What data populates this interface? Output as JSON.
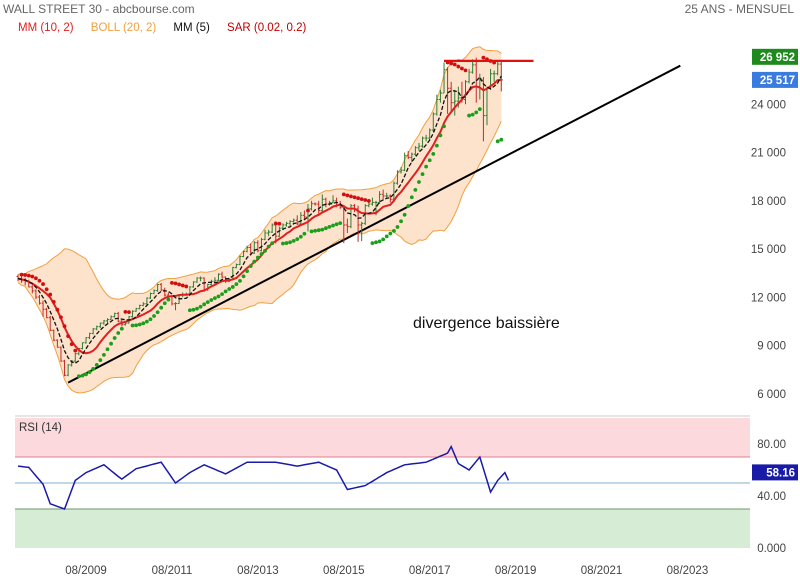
{
  "header": {
    "title": "WALL STREET 30 - abcbourse.com",
    "period": "25 ANS - MENSUEL"
  },
  "legend": [
    {
      "label": "MM (10, 2)",
      "color": "#e02020"
    },
    {
      "label": "BOLL (20, 2)",
      "color": "#f0a040"
    },
    {
      "label": "MM (5)",
      "color": "#111111"
    },
    {
      "label": "SAR (0.02, 0.2)",
      "color": "#c00000"
    }
  ],
  "colors": {
    "up_bar": "#2e7d32",
    "down_bar": "#c62828",
    "boll_fill": "#fde3cc",
    "boll_line": "#f0a040",
    "mm10": "#e02020",
    "mm5": "#111111",
    "sar_above": "#d01010",
    "sar_below": "#1b9e1b",
    "resistance": "#e01010",
    "trendline": "#000000",
    "rsi_line": "#1a1aa8",
    "rsi_over": "#fcd9dc",
    "rsi_under": "#d7ecd5",
    "badge_last": "#1e8a1e",
    "badge_prev": "#3a7be0",
    "badge_rsi": "#1a1aa8"
  },
  "annotation": "divergence baissière",
  "rsi_label": "RSI (14)",
  "chart_data": [
    {
      "type": "ohlc",
      "x_axis": {
        "ticks": [
          "08/2009",
          "08/2011",
          "08/2013",
          "08/2015",
          "08/2017",
          "08/2019",
          "08/2021",
          "08/2023"
        ]
      },
      "y_axis": {
        "ticks": [
          6000,
          9000,
          12000,
          15000,
          18000,
          21000,
          24000
        ],
        "ylim": [
          5000,
          27500
        ]
      },
      "last_value": {
        "label": "26 952",
        "value": 26952
      },
      "prev_value": {
        "label": "25 517",
        "value": 25517
      },
      "price_anchors": [
        [
          "2008-01",
          13200
        ],
        [
          "2008-06",
          12400
        ],
        [
          "2008-09",
          11200
        ],
        [
          "2008-12",
          8900
        ],
        [
          "2009-02",
          7100
        ],
        [
          "2009-05",
          8500
        ],
        [
          "2009-08",
          9500
        ],
        [
          "2009-12",
          10400
        ],
        [
          "2010-04",
          11000
        ],
        [
          "2010-07",
          10400
        ],
        [
          "2010-12",
          11600
        ],
        [
          "2011-04",
          12800
        ],
        [
          "2011-08",
          11600
        ],
        [
          "2011-12",
          12200
        ],
        [
          "2012-04",
          13200
        ],
        [
          "2012-06",
          12800
        ],
        [
          "2012-12",
          13100
        ],
        [
          "2013-05",
          15100
        ],
        [
          "2013-12",
          16500
        ],
        [
          "2014-06",
          16800
        ],
        [
          "2014-12",
          17800
        ],
        [
          "2015-05",
          18000
        ],
        [
          "2015-08",
          16500
        ],
        [
          "2016-01",
          16500
        ],
        [
          "2016-06",
          17900
        ],
        [
          "2016-11",
          19100
        ],
        [
          "2017-03",
          20700
        ],
        [
          "2017-08",
          21900
        ],
        [
          "2017-12",
          24700
        ],
        [
          "2018-01",
          26150
        ],
        [
          "2018-02",
          25000
        ],
        [
          "2018-06",
          24300
        ],
        [
          "2018-09",
          26400
        ],
        [
          "2018-12",
          23300
        ],
        [
          "2019-01",
          25000
        ],
        [
          "2019-03",
          25900
        ],
        [
          "2019-04",
          26400
        ],
        [
          "2019-05",
          25500
        ]
      ],
      "resistance": {
        "value": 26700,
        "from": "2017-12",
        "to": "2020-01"
      },
      "trendline": {
        "from": [
          "2009-03",
          6700
        ],
        "to": [
          "2023-06",
          26400
        ]
      }
    },
    {
      "type": "line",
      "name": "RSI (14)",
      "y_axis": {
        "ticks": [
          "80.00",
          "40.00",
          "0.000"
        ],
        "ylim": [
          0,
          100
        ],
        "levels": [
          70,
          30,
          50
        ]
      },
      "last_value": {
        "label": "58.16",
        "value": 58.16
      },
      "rsi_anchors": [
        [
          "2008-01",
          63
        ],
        [
          "2008-04",
          62
        ],
        [
          "2008-08",
          49
        ],
        [
          "2008-10",
          34
        ],
        [
          "2009-02",
          30
        ],
        [
          "2009-05",
          52
        ],
        [
          "2009-08",
          58
        ],
        [
          "2010-01",
          64
        ],
        [
          "2010-05",
          53
        ],
        [
          "2010-09",
          61
        ],
        [
          "2011-04",
          66
        ],
        [
          "2011-08",
          50
        ],
        [
          "2011-12",
          58
        ],
        [
          "2012-04",
          64
        ],
        [
          "2012-10",
          57
        ],
        [
          "2013-04",
          66
        ],
        [
          "2013-12",
          66
        ],
        [
          "2014-06",
          63
        ],
        [
          "2014-12",
          66
        ],
        [
          "2015-05",
          60
        ],
        [
          "2015-08",
          45
        ],
        [
          "2016-01",
          48
        ],
        [
          "2016-07",
          58
        ],
        [
          "2016-12",
          64
        ],
        [
          "2017-06",
          66
        ],
        [
          "2017-12",
          73
        ],
        [
          "2018-01",
          78
        ],
        [
          "2018-03",
          65
        ],
        [
          "2018-06",
          60
        ],
        [
          "2018-09",
          70
        ],
        [
          "2018-12",
          43
        ],
        [
          "2019-02",
          52
        ],
        [
          "2019-04",
          58
        ],
        [
          "2019-05",
          52
        ]
      ]
    }
  ],
  "series_data": {
    "price": [
      [
        13300,
        13420,
        13000,
        13174
      ],
      [
        13174,
        13300,
        12900,
        13060
      ],
      [
        13060,
        13200,
        12750,
        13000
      ],
      [
        13000,
        13100,
        12620,
        12650
      ],
      [
        12650,
        12760,
        12250,
        12400
      ],
      [
        12400,
        12500,
        11900,
        12020
      ],
      [
        12020,
        12150,
        11550,
        11640
      ],
      [
        11640,
        11800,
        10800,
        11260
      ],
      [
        11260,
        11350,
        10700,
        10740
      ],
      [
        10740,
        10850,
        9900,
        9950
      ],
      [
        9950,
        10000,
        9280,
        9340
      ],
      [
        9340,
        9400,
        8880,
        8900
      ],
      [
        8900,
        8950,
        8000,
        8040
      ],
      [
        8040,
        8120,
        7100,
        7160
      ],
      [
        7160,
        7850,
        7100,
        7800
      ],
      [
        7800,
        8100,
        7700,
        8040
      ],
      [
        8040,
        8550,
        7950,
        8500
      ],
      [
        8500,
        8850,
        8400,
        8820
      ],
      [
        8820,
        9200,
        8760,
        9180
      ],
      [
        9180,
        9520,
        9120,
        9500
      ],
      [
        9500,
        9800,
        9400,
        9760
      ],
      [
        9760,
        10100,
        9700,
        10040
      ],
      [
        10040,
        10250,
        9950,
        10180
      ],
      [
        10180,
        10430,
        10100,
        10400
      ],
      [
        10400,
        10600,
        10300,
        10540
      ],
      [
        10540,
        10700,
        10400,
        10620
      ],
      [
        10620,
        10880,
        10600,
        10800
      ],
      [
        10800,
        11050,
        10750,
        11000
      ],
      [
        11000,
        11100,
        10450,
        10520
      ],
      [
        10520,
        10600,
        10200,
        10300
      ],
      [
        10300,
        10500,
        10250,
        10400
      ],
      [
        10400,
        10850,
        10380,
        10800
      ],
      [
        10800,
        11200,
        10750,
        11140
      ],
      [
        11140,
        11350,
        11100,
        11300
      ],
      [
        11300,
        11550,
        11250,
        11500
      ],
      [
        11500,
        11700,
        11450,
        11600
      ],
      [
        11600,
        12000,
        11550,
        11960
      ],
      [
        11960,
        12300,
        11900,
        12240
      ],
      [
        12240,
        12500,
        12200,
        12420
      ],
      [
        12420,
        12850,
        12350,
        12800
      ],
      [
        12800,
        12900,
        12400,
        12460
      ],
      [
        12460,
        12600,
        12050,
        12140
      ],
      [
        12140,
        12300,
        11900,
        12060
      ],
      [
        12060,
        12100,
        11500,
        11600
      ],
      [
        11600,
        11700,
        11200,
        11620
      ],
      [
        11620,
        12200,
        11600,
        12140
      ],
      [
        12140,
        12300,
        12000,
        12180
      ],
      [
        12180,
        12300,
        12100,
        12200
      ],
      [
        12200,
        12700,
        12150,
        12650
      ],
      [
        12650,
        13000,
        12600,
        12960
      ],
      [
        12960,
        13250,
        12900,
        13200
      ],
      [
        13200,
        13300,
        13000,
        13200
      ],
      [
        13200,
        13250,
        12350,
        12500
      ],
      [
        12500,
        12850,
        12400,
        12800
      ],
      [
        12800,
        13100,
        12750,
        13000
      ],
      [
        13000,
        13250,
        12900,
        13060
      ],
      [
        13060,
        13500,
        13000,
        13440
      ],
      [
        13440,
        13600,
        13200,
        13260
      ],
      [
        13260,
        13300,
        12900,
        13000
      ],
      [
        13000,
        13200,
        12950,
        13100
      ],
      [
        13100,
        13900,
        13050,
        13860
      ],
      [
        13860,
        14100,
        13800,
        14040
      ],
      [
        14040,
        14600,
        14000,
        14540
      ],
      [
        14540,
        14900,
        14500,
        14860
      ],
      [
        14860,
        15200,
        14800,
        15100
      ],
      [
        15100,
        15350,
        14650,
        14750
      ],
      [
        14750,
        15500,
        14700,
        15400
      ],
      [
        15400,
        15550,
        14800,
        14900
      ],
      [
        14900,
        15700,
        14850,
        15600
      ],
      [
        15600,
        16200,
        15550,
        16000
      ],
      [
        16000,
        16200,
        15800,
        16060
      ],
      [
        16060,
        16600,
        16000,
        16500
      ],
      [
        16500,
        16600,
        15350,
        15800
      ],
      [
        15800,
        16400,
        15750,
        16300
      ],
      [
        16300,
        16600,
        16200,
        16500
      ],
      [
        16500,
        16700,
        16400,
        16600
      ],
      [
        16600,
        16800,
        16450,
        16720
      ],
      [
        16720,
        16900,
        16650,
        16800
      ],
      [
        16800,
        17100,
        16500,
        16560
      ],
      [
        16560,
        17300,
        16500,
        17100
      ],
      [
        17100,
        17400,
        16800,
        17000
      ],
      [
        17000,
        17800,
        16100,
        17500
      ],
      [
        17500,
        18000,
        17400,
        17820
      ],
      [
        17820,
        17900,
        17700,
        17800
      ],
      [
        17800,
        18000,
        17200,
        17400
      ],
      [
        17400,
        18400,
        17300,
        18100
      ],
      [
        18100,
        18200,
        17600,
        17800
      ],
      [
        17800,
        18000,
        17700,
        17900
      ],
      [
        17900,
        18350,
        17850,
        18000
      ],
      [
        18000,
        18200,
        17600,
        17750
      ],
      [
        17750,
        18000,
        17500,
        17600
      ],
      [
        17600,
        17750,
        15370,
        16500
      ],
      [
        16500,
        16900,
        16000,
        16400
      ],
      [
        16400,
        17800,
        16300,
        17700
      ],
      [
        17700,
        17800,
        17300,
        17500
      ],
      [
        17500,
        17700,
        15450,
        16500
      ],
      [
        16500,
        16700,
        15500,
        16600
      ],
      [
        16600,
        17800,
        16500,
        17700
      ],
      [
        17700,
        18000,
        17600,
        17800
      ],
      [
        17800,
        18200,
        17700,
        17900
      ],
      [
        17900,
        18000,
        17100,
        17900
      ],
      [
        17900,
        18600,
        17800,
        18400
      ],
      [
        18400,
        18700,
        18100,
        18300
      ],
      [
        18300,
        18500,
        18200,
        18300
      ],
      [
        18300,
        18400,
        17900,
        18100
      ],
      [
        18100,
        19200,
        17900,
        19100
      ],
      [
        19100,
        19900,
        19000,
        19800
      ],
      [
        19800,
        20100,
        19700,
        19900
      ],
      [
        19900,
        21000,
        19850,
        20800
      ],
      [
        20800,
        21100,
        20600,
        20700
      ],
      [
        20700,
        21000,
        20400,
        20900
      ],
      [
        20900,
        21400,
        20800,
        21300
      ],
      [
        21300,
        21600,
        21100,
        21400
      ],
      [
        21400,
        22000,
        21300,
        21900
      ],
      [
        21900,
        22100,
        21700,
        21900
      ],
      [
        21900,
        22500,
        21800,
        22400
      ],
      [
        22400,
        23500,
        22300,
        23400
      ],
      [
        23400,
        24600,
        23300,
        24300
      ],
      [
        24300,
        24900,
        24100,
        24700
      ],
      [
        24700,
        26600,
        24700,
        26150
      ],
      [
        26150,
        26300,
        23400,
        25000
      ],
      [
        25000,
        25400,
        23500,
        24100
      ],
      [
        24100,
        24900,
        23300,
        24200
      ],
      [
        24200,
        25100,
        23800,
        24400
      ],
      [
        24400,
        25400,
        24100,
        24300
      ],
      [
        24300,
        25500,
        24000,
        25400
      ],
      [
        25400,
        26200,
        25300,
        26000
      ],
      [
        26000,
        26800,
        25900,
        26450
      ],
      [
        26450,
        26900,
        24100,
        25100
      ],
      [
        25100,
        25900,
        24300,
        25500
      ],
      [
        25500,
        25700,
        21700,
        23300
      ],
      [
        23300,
        25100,
        22700,
        25000
      ],
      [
        25000,
        26200,
        24900,
        25900
      ],
      [
        25900,
        26100,
        25400,
        25900
      ],
      [
        25900,
        26700,
        25800,
        26500
      ],
      [
        26500,
        26700,
        24800,
        25517
      ]
    ],
    "rsi": [
      63.0,
      62.7,
      62.3,
      62.0,
      58.8,
      55.5,
      52.3,
      49.0,
      41.5,
      34.0,
      33.0,
      32.0,
      31.0,
      30.0,
      37.3,
      44.7,
      52.0,
      54.0,
      56.0,
      58.0,
      59.2,
      60.4,
      61.6,
      62.8,
      64.0,
      61.8,
      59.5,
      57.3,
      55.0,
      53.0,
      55.0,
      57.0,
      59.0,
      61.0,
      61.7,
      62.4,
      63.1,
      63.9,
      64.6,
      65.3,
      66.0,
      62.0,
      58.0,
      54.0,
      50.0,
      52.0,
      54.0,
      56.0,
      58.0,
      59.5,
      61.0,
      62.5,
      64.0,
      62.8,
      61.7,
      60.5,
      59.3,
      58.2,
      57.0,
      58.5,
      60.0,
      61.5,
      63.0,
      64.5,
      66.0,
      66.0,
      66.0,
      66.0,
      66.0,
      66.0,
      66.0,
      66.0,
      66.0,
      65.5,
      65.0,
      64.5,
      64.0,
      63.5,
      63.0,
      63.5,
      64.0,
      64.5,
      65.0,
      65.5,
      66.0,
      64.8,
      63.6,
      62.4,
      61.2,
      60.0,
      55.0,
      50.0,
      45.0,
      45.6,
      46.2,
      46.8,
      47.4,
      48.0,
      49.7,
      51.3,
      53.0,
      54.7,
      56.3,
      58.0,
      59.2,
      60.4,
      61.6,
      62.8,
      64.0,
      64.3,
      64.7,
      65.0,
      65.3,
      65.7,
      66.0,
      67.2,
      68.3,
      69.5,
      70.7,
      71.8,
      73.0,
      78.0,
      71.5,
      65.0,
      63.3,
      61.7,
      60.0,
      63.3,
      66.7,
      70.0,
      61.0,
      52.0,
      43.0,
      47.5,
      52.0,
      55.0,
      58.0,
      52.0
    ]
  }
}
